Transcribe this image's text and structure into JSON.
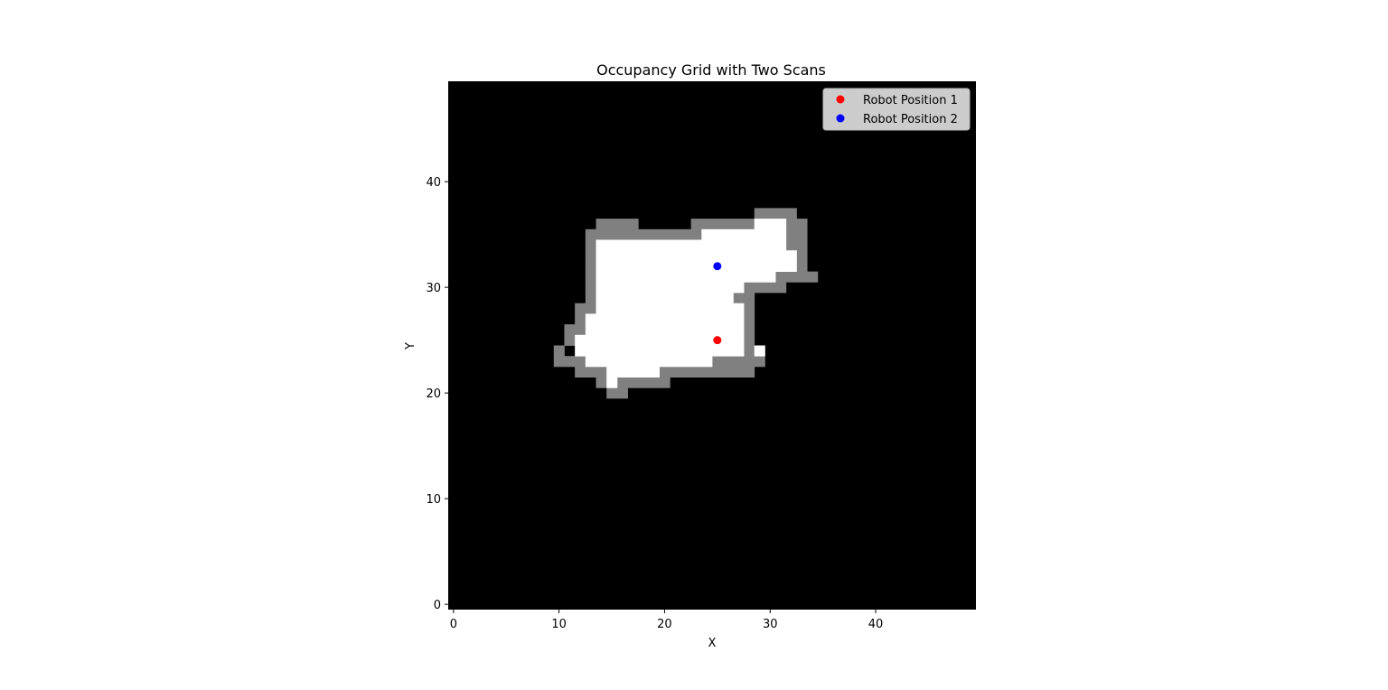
{
  "chart_data": {
    "type": "heatmap",
    "title": "Occupancy Grid with Two Scans",
    "xlabel": "X",
    "ylabel": "Y",
    "xlim": [
      -0.5,
      49.5
    ],
    "ylim": [
      -0.5,
      49.5
    ],
    "grid": false,
    "legend_position": "upper-right",
    "colormap": {
      "unknown": "#000000",
      "occupied": "#808080",
      "free": "#ffffff"
    },
    "x_ticks": [
      0,
      10,
      20,
      30,
      40
    ],
    "y_ticks": [
      0,
      10,
      20,
      30,
      40
    ],
    "occupied_rows": [
      {
        "y": 20,
        "segments": [
          [
            15,
            16
          ]
        ]
      },
      {
        "y": 21,
        "segments": [
          [
            14,
            20
          ]
        ]
      },
      {
        "y": 22,
        "segments": [
          [
            12,
            14
          ],
          [
            20,
            28
          ]
        ]
      },
      {
        "y": 23,
        "segments": [
          [
            10,
            12
          ],
          [
            25,
            29
          ]
        ]
      },
      {
        "y": 24,
        "segments": [
          [
            10,
            10
          ],
          [
            28,
            28
          ]
        ]
      },
      {
        "y": 25,
        "segments": [
          [
            11,
            11
          ],
          [
            28,
            28
          ]
        ]
      },
      {
        "y": 26,
        "segments": [
          [
            11,
            12
          ],
          [
            28,
            28
          ]
        ]
      },
      {
        "y": 27,
        "segments": [
          [
            12,
            12
          ],
          [
            28,
            28
          ]
        ]
      },
      {
        "y": 28,
        "segments": [
          [
            12,
            13
          ],
          [
            28,
            28
          ]
        ]
      },
      {
        "y": 29,
        "segments": [
          [
            13,
            13
          ],
          [
            27,
            28
          ]
        ]
      },
      {
        "y": 30,
        "segments": [
          [
            13,
            13
          ],
          [
            28,
            31
          ]
        ]
      },
      {
        "y": 31,
        "segments": [
          [
            13,
            13
          ],
          [
            31,
            34
          ]
        ]
      },
      {
        "y": 32,
        "segments": [
          [
            13,
            13
          ],
          [
            33,
            33
          ]
        ]
      },
      {
        "y": 33,
        "segments": [
          [
            13,
            13
          ],
          [
            33,
            33
          ]
        ]
      },
      {
        "y": 34,
        "segments": [
          [
            13,
            13
          ],
          [
            32,
            33
          ]
        ]
      },
      {
        "y": 35,
        "segments": [
          [
            13,
            23
          ],
          [
            32,
            33
          ]
        ]
      },
      {
        "y": 36,
        "segments": [
          [
            14,
            17
          ],
          [
            23,
            28
          ],
          [
            32,
            33
          ]
        ]
      },
      {
        "y": 37,
        "segments": [
          [
            29,
            32
          ]
        ]
      }
    ],
    "free_rows": [
      {
        "y": 21,
        "segments": [
          [
            15,
            15
          ]
        ]
      },
      {
        "y": 22,
        "segments": [
          [
            15,
            19
          ]
        ]
      },
      {
        "y": 23,
        "segments": [
          [
            13,
            24
          ]
        ]
      },
      {
        "y": 24,
        "segments": [
          [
            12,
            27
          ],
          [
            29,
            29
          ]
        ]
      },
      {
        "y": 25,
        "segments": [
          [
            12,
            27
          ]
        ]
      },
      {
        "y": 26,
        "segments": [
          [
            13,
            27
          ]
        ]
      },
      {
        "y": 27,
        "segments": [
          [
            13,
            27
          ]
        ]
      },
      {
        "y": 28,
        "segments": [
          [
            14,
            27
          ]
        ]
      },
      {
        "y": 29,
        "segments": [
          [
            14,
            26
          ]
        ]
      },
      {
        "y": 30,
        "segments": [
          [
            14,
            27
          ]
        ]
      },
      {
        "y": 31,
        "segments": [
          [
            14,
            30
          ]
        ]
      },
      {
        "y": 32,
        "segments": [
          [
            14,
            32
          ]
        ]
      },
      {
        "y": 33,
        "segments": [
          [
            14,
            32
          ]
        ]
      },
      {
        "y": 34,
        "segments": [
          [
            14,
            31
          ]
        ]
      },
      {
        "y": 35,
        "segments": [
          [
            24,
            31
          ]
        ]
      },
      {
        "y": 36,
        "segments": [
          [
            29,
            31
          ]
        ]
      }
    ],
    "series": [
      {
        "name": "Robot Position 1",
        "color": "#ff0000",
        "x": 25,
        "y": 25
      },
      {
        "name": "Robot Position 2",
        "color": "#0000ff",
        "x": 25,
        "y": 32
      }
    ]
  }
}
